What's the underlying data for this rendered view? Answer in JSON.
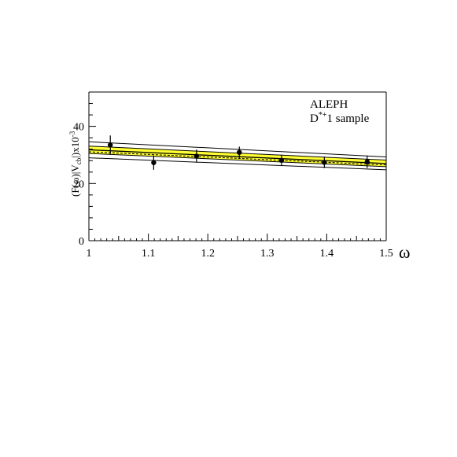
{
  "chart_data": {
    "type": "scatter",
    "xlabel": "ω",
    "ylabel": {
      "main": "(F(ω)|V",
      "sub": "cb",
      "post": "|)x10",
      "sup": "-3"
    },
    "xlim": [
      1.0,
      1.5
    ],
    "ylim": [
      0,
      52
    ],
    "x_ticks": [
      1.0,
      1.1,
      1.2,
      1.3,
      1.4,
      1.5
    ],
    "x_tick_labels": [
      "1",
      "1.1",
      "1.2",
      "1.3",
      "1.4",
      "1.5"
    ],
    "y_ticks": [
      0,
      20,
      40
    ],
    "y_tick_labels": [
      "0",
      "20",
      "40"
    ],
    "annotation": {
      "line1": "ALEPH",
      "line2_pre": "D",
      "line2_sup": "*+",
      "line2_post": "1  sample"
    },
    "points": [
      {
        "x": 1.036,
        "y": 33.5,
        "err": 3.3
      },
      {
        "x": 1.109,
        "y": 27.3,
        "err": 2.5
      },
      {
        "x": 1.181,
        "y": 29.6,
        "err": 2.3
      },
      {
        "x": 1.253,
        "y": 30.9,
        "err": 2.0
      },
      {
        "x": 1.324,
        "y": 28.1,
        "err": 2.0
      },
      {
        "x": 1.396,
        "y": 27.4,
        "err": 2.0
      },
      {
        "x": 1.468,
        "y": 27.6,
        "err": 2.2
      }
    ],
    "fit_band": {
      "x": [
        1.0,
        1.5
      ],
      "central": [
        31.8,
        27.0
      ],
      "inner_low": [
        30.5,
        25.9
      ],
      "inner_high": [
        33.1,
        28.2
      ],
      "outer_low": [
        29.0,
        24.8
      ],
      "outer_high": [
        34.6,
        29.3
      ],
      "dashed": [
        31.1,
        26.5
      ],
      "band_color": "#ffff33"
    }
  }
}
